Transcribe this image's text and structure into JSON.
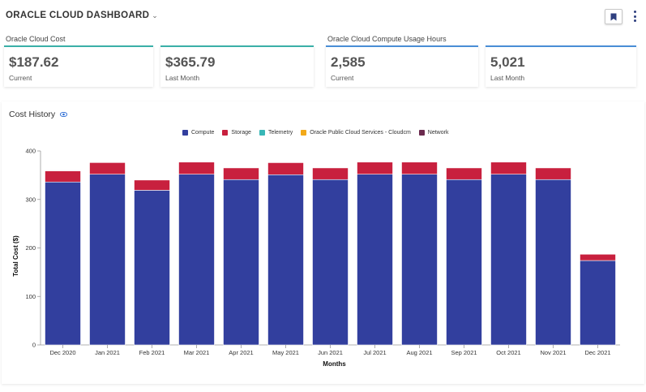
{
  "header": {
    "title": "ORACLE CLOUD DASHBOARD",
    "title_chevron": "⌄"
  },
  "kpis": {
    "cost_group_label": "Oracle Cloud Cost",
    "usage_group_label": "Oracle Cloud Compute Usage Hours",
    "cards": [
      {
        "value": "$187.62",
        "label": "Current"
      },
      {
        "value": "$365.79",
        "label": "Last Month"
      },
      {
        "value": "2,585",
        "label": "Current"
      },
      {
        "value": "5,021",
        "label": "Last Month"
      }
    ]
  },
  "panel": {
    "title": "Cost History"
  },
  "chart_data": {
    "type": "bar",
    "stacked": true,
    "title": "Cost History",
    "xlabel": "Months",
    "ylabel": "Total Cost ($)",
    "ylim": [
      0,
      400
    ],
    "yticks": [
      0,
      100,
      200,
      300,
      400
    ],
    "categories": [
      "Dec 2020",
      "Jan 2021",
      "Feb 2021",
      "Mar 2021",
      "Apr 2021",
      "May 2021",
      "Jun 2021",
      "Jul 2021",
      "Aug 2021",
      "Sep 2021",
      "Oct 2021",
      "Nov 2021",
      "Dec 2021"
    ],
    "series": [
      {
        "name": "Compute",
        "color": "#323f9e",
        "values": [
          336,
          352,
          319,
          352,
          341,
          351,
          341,
          352,
          352,
          341,
          352,
          341,
          174
        ]
      },
      {
        "name": "Storage",
        "color": "#c8203e",
        "values": [
          23,
          24,
          21,
          25,
          24,
          25,
          24,
          25,
          25,
          24,
          25,
          24,
          13
        ]
      },
      {
        "name": "Telemetry",
        "color": "#38b7b7",
        "values": [
          0,
          0,
          0,
          0,
          0,
          0,
          0,
          0,
          0,
          0,
          0,
          0,
          0
        ]
      },
      {
        "name": "Oracle Public Cloud Services - Cloudcm",
        "color": "#f2a91a",
        "values": [
          0,
          0,
          0,
          0,
          0,
          0,
          0,
          0,
          0,
          0,
          0,
          0,
          0
        ]
      },
      {
        "name": "Network",
        "color": "#6b2a4e",
        "values": [
          1,
          0,
          0,
          0,
          0,
          1,
          0,
          0,
          0,
          0,
          0,
          0,
          0
        ]
      }
    ]
  }
}
